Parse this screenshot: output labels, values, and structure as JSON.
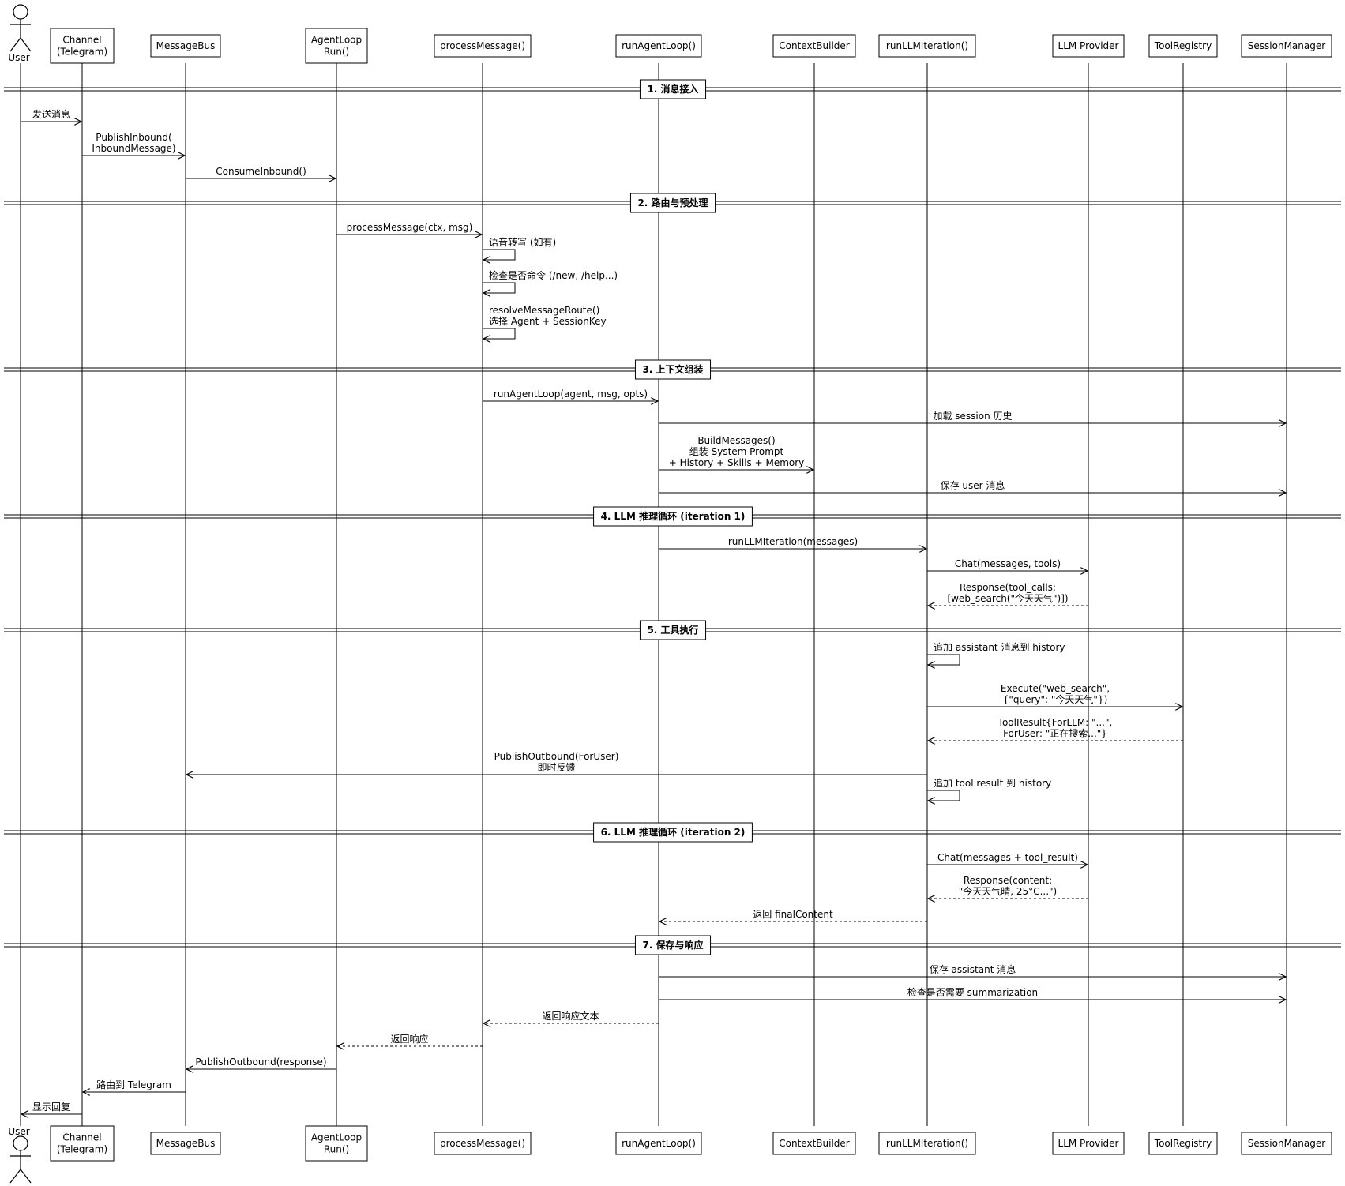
{
  "participants": [
    {
      "id": "user",
      "label": [
        "User"
      ],
      "kind": "actor"
    },
    {
      "id": "channel",
      "label": [
        "Channel",
        "(Telegram)"
      ]
    },
    {
      "id": "bus",
      "label": [
        "MessageBus"
      ]
    },
    {
      "id": "loop",
      "label": [
        "AgentLoop",
        "Run()"
      ]
    },
    {
      "id": "pm",
      "label": [
        "processMessage()"
      ]
    },
    {
      "id": "ral",
      "label": [
        "runAgentLoop()"
      ]
    },
    {
      "id": "cb",
      "label": [
        "ContextBuilder"
      ]
    },
    {
      "id": "rli",
      "label": [
        "runLLMIteration()"
      ]
    },
    {
      "id": "llm",
      "label": [
        "LLM Provider"
      ]
    },
    {
      "id": "tools",
      "label": [
        "ToolRegistry"
      ]
    },
    {
      "id": "sm",
      "label": [
        "SessionManager"
      ]
    }
  ],
  "sections": [
    {
      "title": "1. 消息接入",
      "steps": [
        {
          "from": "user",
          "to": "channel",
          "lines": [
            "发送消息"
          ]
        },
        {
          "from": "channel",
          "to": "bus",
          "lines": [
            "PublishInbound(",
            "InboundMessage)"
          ]
        },
        {
          "from": "bus",
          "to": "loop",
          "lines": [
            "ConsumeInbound()"
          ]
        }
      ]
    },
    {
      "title": "2. 路由与预处理",
      "steps": [
        {
          "from": "loop",
          "to": "pm",
          "lines": [
            "processMessage(ctx, msg)"
          ]
        },
        {
          "from": "pm",
          "to": "pm",
          "lines": [
            "语音转写 (如有)"
          ]
        },
        {
          "from": "pm",
          "to": "pm",
          "lines": [
            "检查是否命令 (/new, /help...)"
          ]
        },
        {
          "from": "pm",
          "to": "pm",
          "lines": [
            "resolveMessageRoute()",
            "选择 Agent + SessionKey"
          ]
        }
      ]
    },
    {
      "title": "3. 上下文组装",
      "steps": [
        {
          "from": "pm",
          "to": "ral",
          "lines": [
            "runAgentLoop(agent, msg, opts)"
          ]
        },
        {
          "from": "ral",
          "to": "sm",
          "lines": [
            "加载 session 历史"
          ]
        },
        {
          "from": "ral",
          "to": "cb",
          "lines": [
            "BuildMessages()",
            "组装 System Prompt",
            "+ History + Skills + Memory"
          ]
        },
        {
          "from": "ral",
          "to": "sm",
          "lines": [
            "保存 user 消息"
          ]
        }
      ]
    },
    {
      "title": "4. LLM 推理循环 (iteration 1)",
      "steps": [
        {
          "from": "ral",
          "to": "rli",
          "lines": [
            "runLLMIteration(messages)"
          ]
        },
        {
          "from": "rli",
          "to": "llm",
          "lines": [
            "Chat(messages, tools)"
          ]
        },
        {
          "from": "llm",
          "to": "rli",
          "lines": [
            "Response(tool_calls:",
            "[web_search(\"今天天气\")])"
          ],
          "dashed": true
        }
      ]
    },
    {
      "title": "5. 工具执行",
      "steps": [
        {
          "from": "rli",
          "to": "rli",
          "lines": [
            "追加 assistant 消息到 history"
          ]
        },
        {
          "from": "rli",
          "to": "tools",
          "lines": [
            "Execute(\"web_search\",",
            "{\"query\": \"今天天气\"})"
          ]
        },
        {
          "from": "tools",
          "to": "rli",
          "lines": [
            "ToolResult{ForLLM: \"...\",",
            "ForUser: \"正在搜索...\"}"
          ],
          "dashed": true
        },
        {
          "from": "rli",
          "to": "bus",
          "lines": [
            "PublishOutbound(ForUser)",
            "即时反馈"
          ]
        },
        {
          "from": "rli",
          "to": "rli",
          "lines": [
            "追加 tool result 到 history"
          ]
        }
      ]
    },
    {
      "title": "6. LLM 推理循环 (iteration 2)",
      "steps": [
        {
          "from": "rli",
          "to": "llm",
          "lines": [
            "Chat(messages + tool_result)"
          ]
        },
        {
          "from": "llm",
          "to": "rli",
          "lines": [
            "Response(content:",
            "\"今天天气晴, 25°C...\")"
          ],
          "dashed": true
        },
        {
          "from": "rli",
          "to": "ral",
          "lines": [
            "返回 finalContent"
          ],
          "dashed": true
        }
      ]
    },
    {
      "title": "7. 保存与响应",
      "steps": [
        {
          "from": "ral",
          "to": "sm",
          "lines": [
            "保存 assistant 消息"
          ]
        },
        {
          "from": "ral",
          "to": "sm",
          "lines": [
            "检查是否需要 summarization"
          ]
        },
        {
          "from": "ral",
          "to": "pm",
          "lines": [
            "返回响应文本"
          ],
          "dashed": true
        },
        {
          "from": "pm",
          "to": "loop",
          "lines": [
            "返回响应"
          ],
          "dashed": true
        },
        {
          "from": "loop",
          "to": "bus",
          "lines": [
            "PublishOutbound(response)"
          ]
        },
        {
          "from": "bus",
          "to": "channel",
          "lines": [
            "路由到 Telegram"
          ]
        },
        {
          "from": "channel",
          "to": "user",
          "lines": [
            "显示回复"
          ]
        }
      ]
    }
  ]
}
